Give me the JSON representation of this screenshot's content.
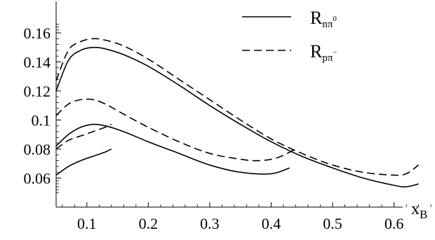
{
  "chart_data": {
    "type": "line",
    "xlabel": "x",
    "xlabel_sub": "B",
    "ylabel": "",
    "xlim": [
      0.05,
      0.7
    ],
    "ylim": [
      0.04,
      0.17
    ],
    "x_ticks": [
      0.1,
      0.2,
      0.3,
      0.4,
      0.5,
      0.6
    ],
    "y_ticks": [
      0.06,
      0.08,
      0.1,
      0.12,
      0.14,
      0.16
    ],
    "x_tick_labels": [
      "0.1",
      "0.2",
      "0.3",
      "0.4",
      "0.5",
      "0.6"
    ],
    "y_tick_labels": [
      "0.06",
      "0.08",
      "0.1",
      "0.12",
      "0.14",
      "0.16"
    ],
    "grid": false,
    "legend_position": "top-right",
    "legend": [
      {
        "main": "R",
        "sub": "nπ",
        "sup": "0",
        "style": "solid"
      },
      {
        "main": "R",
        "sub": "pπ",
        "sup": "−",
        "style": "dashed"
      }
    ],
    "series": [
      {
        "legend_index": 0,
        "style": "solid",
        "x": [
          0.05,
          0.07,
          0.09,
          0.11,
          0.13,
          0.16,
          0.2,
          0.25,
          0.3,
          0.35,
          0.4,
          0.45,
          0.5,
          0.55,
          0.6,
          0.62,
          0.64
        ],
        "y": [
          0.12,
          0.141,
          0.148,
          0.15,
          0.149,
          0.145,
          0.137,
          0.124,
          0.11,
          0.097,
          0.085,
          0.075,
          0.067,
          0.06,
          0.055,
          0.054,
          0.056
        ]
      },
      {
        "legend_index": 1,
        "style": "dashed",
        "x": [
          0.05,
          0.07,
          0.09,
          0.11,
          0.13,
          0.16,
          0.2,
          0.25,
          0.3,
          0.35,
          0.4,
          0.45,
          0.5,
          0.55,
          0.6,
          0.62,
          0.64
        ],
        "y": [
          0.127,
          0.148,
          0.154,
          0.156,
          0.155,
          0.151,
          0.142,
          0.128,
          0.114,
          0.1,
          0.087,
          0.077,
          0.069,
          0.064,
          0.062,
          0.063,
          0.069
        ]
      },
      {
        "legend_index": 0,
        "style": "solid",
        "x": [
          0.05,
          0.07,
          0.09,
          0.11,
          0.13,
          0.16,
          0.2,
          0.25,
          0.3,
          0.35,
          0.4,
          0.43
        ],
        "y": [
          0.082,
          0.09,
          0.095,
          0.097,
          0.096,
          0.092,
          0.085,
          0.077,
          0.069,
          0.064,
          0.063,
          0.067
        ]
      },
      {
        "legend_index": 1,
        "style": "dashed",
        "x": [
          0.05,
          0.07,
          0.09,
          0.11,
          0.13,
          0.16,
          0.2,
          0.25,
          0.3,
          0.35,
          0.38,
          0.41,
          0.44
        ],
        "y": [
          0.103,
          0.111,
          0.114,
          0.114,
          0.111,
          0.104,
          0.095,
          0.085,
          0.077,
          0.073,
          0.072,
          0.074,
          0.08
        ]
      },
      {
        "legend_index": 0,
        "style": "solid",
        "x": [
          0.05,
          0.07,
          0.09,
          0.11,
          0.13,
          0.14
        ],
        "y": [
          0.062,
          0.068,
          0.072,
          0.075,
          0.078,
          0.08
        ]
      },
      {
        "legend_index": 1,
        "style": "dashed",
        "x": [
          0.05,
          0.07,
          0.09,
          0.11,
          0.13,
          0.14
        ],
        "y": [
          0.08,
          0.086,
          0.089,
          0.092,
          0.095,
          0.097
        ]
      }
    ]
  }
}
